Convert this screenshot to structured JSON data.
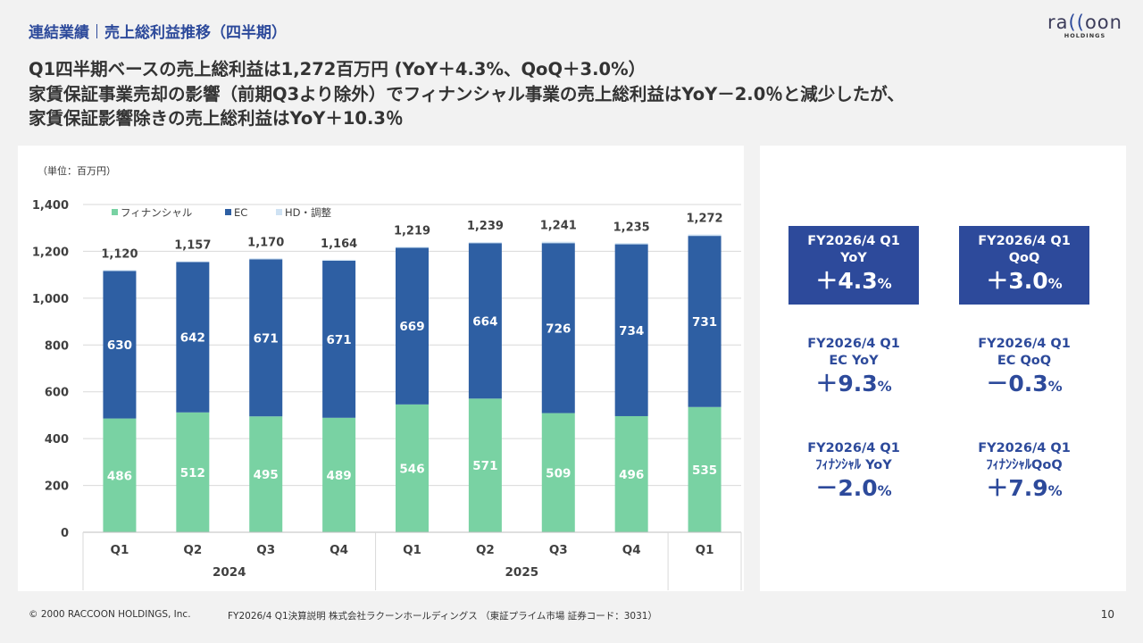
{
  "header": {
    "section": "連結業績",
    "title": "売上総利益推移（四半期）"
  },
  "logo": {
    "mark_left": "ra",
    "mark_right": "oon",
    "sub": "HOLDINGS"
  },
  "headline": {
    "line1": "Q1四半期ベースの売上総利益は1,272百万円 (YoY＋4.3%、QoQ＋3.0%）",
    "line2": "家賃保証事業売却の影響（前期Q3より除外）でフィナンシャル事業の売上総利益はYoY－2.0％と減少したが、",
    "line3": "家賃保証影響除きの売上総利益はYoY＋10.3％"
  },
  "unit_label": "（単位：百万円）",
  "chart_data": {
    "type": "bar",
    "stacked": true,
    "categories": [
      "Q1",
      "Q2",
      "Q3",
      "Q4",
      "Q1",
      "Q2",
      "Q3",
      "Q4",
      "Q1"
    ],
    "year_groups": [
      {
        "label": "2024",
        "span": 4
      },
      {
        "label": "2025",
        "span": 4
      },
      {
        "label": "",
        "span": 1
      }
    ],
    "series": [
      {
        "name": "フィナンシャル",
        "color": "#79d2a3",
        "values": [
          486,
          512,
          495,
          489,
          546,
          571,
          509,
          496,
          535
        ]
      },
      {
        "name": "EC",
        "color": "#2e5fa3",
        "values": [
          630,
          642,
          671,
          671,
          669,
          664,
          726,
          734,
          731
        ]
      },
      {
        "name": "HD・調整",
        "color": "#cfe2f3",
        "values": [
          4,
          3,
          4,
          4,
          4,
          4,
          6,
          5,
          6
        ]
      }
    ],
    "totals": [
      1120,
      1157,
      1170,
      1164,
      1219,
      1239,
      1241,
      1235,
      1272
    ],
    "totals_labels": [
      "1,120",
      "1,157",
      "1,170",
      "1,164",
      "1,219",
      "1,239",
      "1,241",
      "1,235",
      "1,272"
    ],
    "ylim": [
      0,
      1400
    ],
    "yticks": [
      0,
      200,
      400,
      600,
      800,
      1000,
      1200,
      1400
    ],
    "ytick_labels": [
      "0",
      "200",
      "400",
      "600",
      "800",
      "1,000",
      "1,200",
      "1,400"
    ],
    "grid": true,
    "legend": "top-left"
  },
  "kpis": [
    {
      "line1": "FY2026/4 Q1",
      "line2": "YoY",
      "value": "＋4.3",
      "unit": "%",
      "boxed": true
    },
    {
      "line1": "FY2026/4 Q1",
      "line2": "QoQ",
      "value": "＋3.0",
      "unit": "%",
      "boxed": true
    },
    {
      "line1": "FY2026/4 Q1",
      "line2": "EC YoY",
      "value": "＋9.3",
      "unit": "%",
      "boxed": false
    },
    {
      "line1": "FY2026/4 Q1",
      "line2": "EC QoQ",
      "value": "－0.3",
      "unit": "%",
      "boxed": false
    },
    {
      "line1": "FY2026/4 Q1",
      "line2": "ﾌｨﾅﾝｼｬﾙ YoY",
      "value": "－2.0",
      "unit": "%",
      "boxed": false
    },
    {
      "line1": "FY2026/4 Q1",
      "line2": "ﾌｨﾅﾝｼｬﾙQoQ",
      "value": "＋7.9",
      "unit": "%",
      "boxed": false
    }
  ],
  "footer": {
    "copyright": "© 2000 RACCOON HOLDINGS, Inc.",
    "doc": "FY2026/4 Q1決算説明 株式会社ラクーンホールディングス （東証プライム市場 証券コード：3031）",
    "page": "10"
  }
}
